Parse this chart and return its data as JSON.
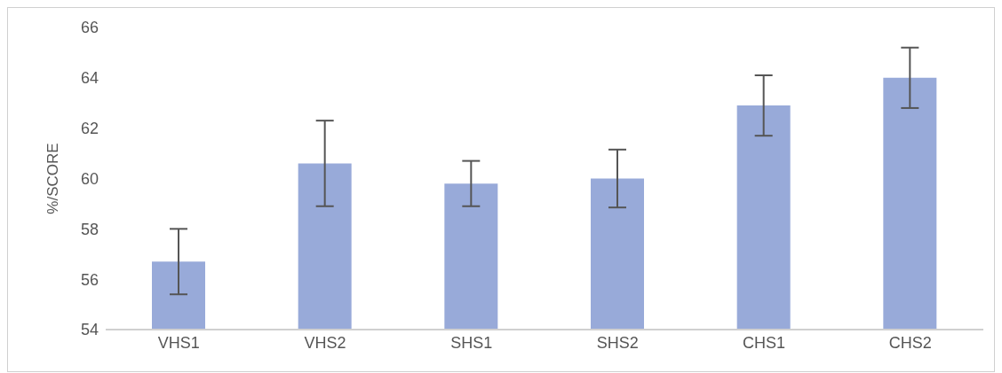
{
  "chart_data": {
    "type": "bar",
    "ylabel": "%/SCORE",
    "categories": [
      "VHS1",
      "VHS2",
      "SHS1",
      "SHS2",
      "CHS1",
      "CHS2"
    ],
    "values": [
      56.7,
      60.6,
      59.8,
      60.0,
      62.9,
      64.0
    ],
    "errors": [
      1.3,
      1.7,
      0.9,
      1.15,
      1.2,
      1.2
    ],
    "color": "#98aad9",
    "ylim": [
      54,
      66
    ],
    "yticks": [
      54,
      56,
      58,
      60,
      62,
      64,
      66
    ],
    "grid": false
  }
}
